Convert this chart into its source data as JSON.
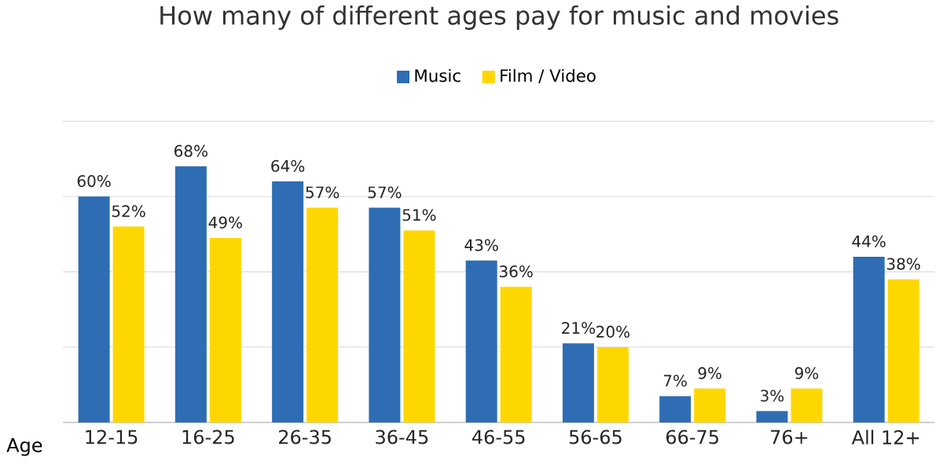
{
  "chart_data": {
    "type": "bar",
    "title": "How many of different ages pay for music and movies",
    "xlabel": "Age",
    "categories": [
      "12-15",
      "16-25",
      "26-35",
      "36-45",
      "46-55",
      "56-65",
      "66-75",
      "76+",
      "All 12+"
    ],
    "series": [
      {
        "name": "Music",
        "color": "#2e6db4",
        "values": [
          60,
          68,
          64,
          57,
          43,
          21,
          7,
          3,
          44
        ],
        "value_labels": [
          "60%",
          "68%",
          "64%",
          "57%",
          "43%",
          "21%",
          "7%",
          "3%",
          "44%"
        ]
      },
      {
        "name": "Film / Video",
        "color": "#ffd700",
        "values": [
          52,
          49,
          57,
          51,
          36,
          20,
          9,
          9,
          38
        ],
        "value_labels": [
          "52%",
          "49%",
          "57%",
          "51%",
          "36%",
          "20%",
          "9%",
          "9%",
          "38%"
        ]
      }
    ],
    "grid": "y",
    "legend": "top",
    "tick_labels": "x"
  }
}
